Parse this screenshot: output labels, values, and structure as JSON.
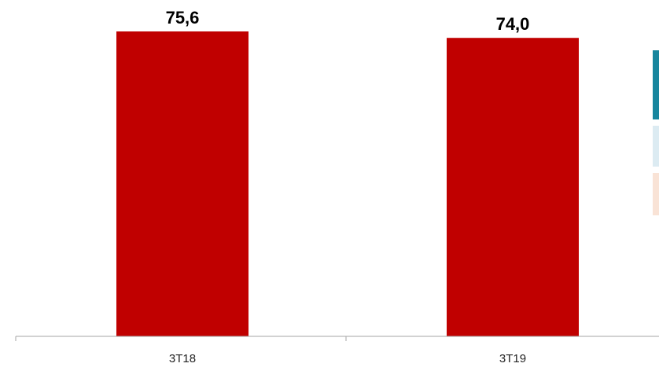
{
  "chart_data": {
    "type": "bar",
    "categories": [
      "3T18",
      "3T19"
    ],
    "values": [
      75.6,
      74.0
    ],
    "value_labels": [
      "75,6",
      "74,0"
    ],
    "title": "",
    "xlabel": "",
    "ylabel": "",
    "ylim": [
      0,
      80
    ],
    "grid": false,
    "bar_color": "#C00000",
    "axis_color": "#A6A6A6"
  },
  "legend_swatches": [
    {
      "color": "#17869E"
    },
    {
      "color": "#DCEBF2"
    },
    {
      "color": "#F9E3D6"
    }
  ]
}
